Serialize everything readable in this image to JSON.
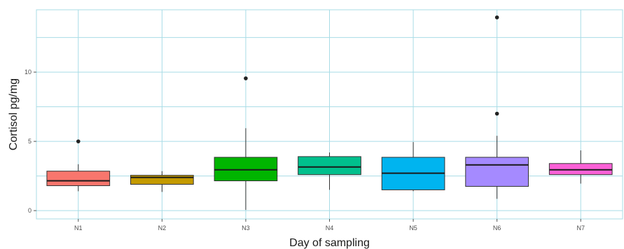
{
  "chart_data": {
    "type": "boxplot",
    "title": "",
    "xlabel": "Day of sampling",
    "ylabel": "Cortisol pg/mg",
    "ylim": [
      -0.6,
      14.5
    ],
    "yticks": [
      0,
      5,
      10
    ],
    "grid": true,
    "legend": "none",
    "categories": [
      "N1",
      "N2",
      "N3",
      "N4",
      "N5",
      "N6",
      "N7"
    ],
    "boxes": [
      {
        "category": "N1",
        "color": "#F8766D",
        "whisker_low": 1.4,
        "q1": 1.8,
        "median": 2.15,
        "q3": 2.85,
        "whisker_high": 3.35,
        "outliers": [
          5.0
        ]
      },
      {
        "category": "N2",
        "color": "#C49A00",
        "whisker_low": 1.35,
        "q1": 1.9,
        "median": 2.4,
        "q3": 2.55,
        "whisker_high": 2.85,
        "outliers": []
      },
      {
        "category": "N3",
        "color": "#00B500",
        "whisker_low": 0.05,
        "q1": 2.15,
        "median": 2.95,
        "q3": 3.85,
        "whisker_high": 5.95,
        "outliers": [
          9.55
        ]
      },
      {
        "category": "N4",
        "color": "#00C08D",
        "whisker_low": 1.5,
        "q1": 2.6,
        "median": 3.15,
        "q3": 3.9,
        "whisker_high": 4.2,
        "outliers": []
      },
      {
        "category": "N5",
        "color": "#00B4EF",
        "whisker_low": 1.4,
        "q1": 1.5,
        "median": 2.7,
        "q3": 3.85,
        "whisker_high": 4.95,
        "outliers": []
      },
      {
        "category": "N6",
        "color": "#A58AFF",
        "whisker_low": 0.85,
        "q1": 1.75,
        "median": 3.3,
        "q3": 3.85,
        "whisker_high": 5.4,
        "outliers": [
          7.0,
          13.95
        ]
      },
      {
        "category": "N7",
        "color": "#FB61D7",
        "whisker_low": 1.95,
        "q1": 2.6,
        "median": 2.95,
        "q3": 3.4,
        "whisker_high": 4.35,
        "outliers": []
      }
    ]
  }
}
